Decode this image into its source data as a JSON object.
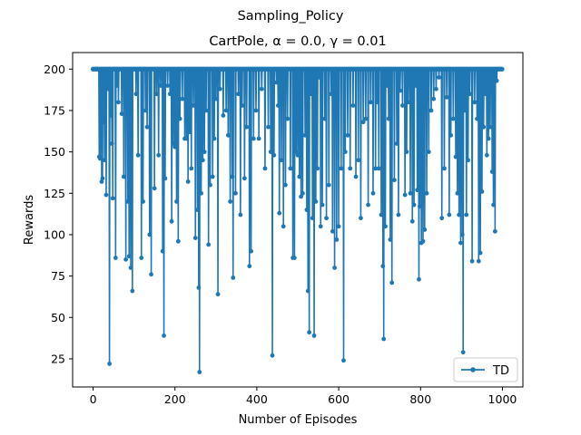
{
  "figure": {
    "suptitle": "Sampling_Policy",
    "title": "CartPole, α = 0.0, γ = 0.01"
  },
  "chart_data": {
    "type": "line",
    "title": "CartPole, α = 0.0, γ = 0.01",
    "xlabel": "Number of Episodes",
    "ylabel": "Rewards",
    "xlim": [
      -50,
      1050
    ],
    "ylim": [
      8,
      210
    ],
    "xticks": [
      0,
      200,
      400,
      600,
      800,
      1000
    ],
    "yticks": [
      25,
      50,
      75,
      100,
      125,
      150,
      175,
      200
    ],
    "xtick_labels": [
      "0",
      "200",
      "400",
      "600",
      "800",
      "1000"
    ],
    "ytick_labels": [
      "25",
      "50",
      "75",
      "100",
      "125",
      "150",
      "175",
      "200"
    ],
    "grid": false,
    "legend": {
      "position": "lower-right",
      "entries": [
        "TD"
      ]
    },
    "colors": {
      "TD": "#1f77b4"
    },
    "series": [
      {
        "name": "TD",
        "x_start": 0,
        "x_end": 999,
        "baseline": 200,
        "dips": [
          [
            15,
            147
          ],
          [
            17,
            146
          ],
          [
            19,
            157
          ],
          [
            21,
            132
          ],
          [
            23,
            134
          ],
          [
            25,
            168
          ],
          [
            28,
            145
          ],
          [
            32,
            124
          ],
          [
            36,
            188
          ],
          [
            40,
            22
          ],
          [
            44,
            172
          ],
          [
            46,
            155
          ],
          [
            48,
            122
          ],
          [
            55,
            86
          ],
          [
            58,
            190
          ],
          [
            62,
            180
          ],
          [
            70,
            173
          ],
          [
            75,
            135
          ],
          [
            80,
            85
          ],
          [
            85,
            120
          ],
          [
            88,
            87
          ],
          [
            92,
            80
          ],
          [
            96,
            66
          ],
          [
            105,
            185
          ],
          [
            110,
            148
          ],
          [
            118,
            86
          ],
          [
            122,
            120
          ],
          [
            128,
            175
          ],
          [
            132,
            165
          ],
          [
            138,
            100
          ],
          [
            142,
            76
          ],
          [
            150,
            128
          ],
          [
            155,
            185
          ],
          [
            160,
            148
          ],
          [
            165,
            190
          ],
          [
            170,
            90
          ],
          [
            173,
            39
          ],
          [
            176,
            134
          ],
          [
            182,
            190
          ],
          [
            188,
            185
          ],
          [
            192,
            108
          ],
          [
            196,
            155
          ],
          [
            200,
            153
          ],
          [
            204,
            120
          ],
          [
            208,
            96
          ],
          [
            212,
            170
          ],
          [
            218,
            182
          ],
          [
            224,
            158
          ],
          [
            228,
            158
          ],
          [
            232,
            132
          ],
          [
            236,
            162
          ],
          [
            240,
            140
          ],
          [
            245,
            178
          ],
          [
            250,
            98
          ],
          [
            255,
            115
          ],
          [
            258,
            68
          ],
          [
            260,
            17
          ],
          [
            264,
            125
          ],
          [
            268,
            145
          ],
          [
            272,
            150
          ],
          [
            276,
            175
          ],
          [
            282,
            94
          ],
          [
            286,
            130
          ],
          [
            292,
            135
          ],
          [
            296,
            158
          ],
          [
            300,
            182
          ],
          [
            305,
            64
          ],
          [
            310,
            188
          ],
          [
            318,
            172
          ],
          [
            325,
            175
          ],
          [
            330,
            160
          ],
          [
            335,
            120
          ],
          [
            340,
            135
          ],
          [
            342,
            74
          ],
          [
            348,
            125
          ],
          [
            355,
            185
          ],
          [
            360,
            112
          ],
          [
            364,
            178
          ],
          [
            370,
            134
          ],
          [
            375,
            165
          ],
          [
            382,
            81
          ],
          [
            386,
            90
          ],
          [
            392,
            158
          ],
          [
            398,
            175
          ],
          [
            405,
            158
          ],
          [
            412,
            188
          ],
          [
            420,
            140
          ],
          [
            428,
            165
          ],
          [
            434,
            150
          ],
          [
            438,
            27
          ],
          [
            442,
            148
          ],
          [
            448,
            192
          ],
          [
            452,
            178
          ],
          [
            455,
            113
          ],
          [
            460,
            145
          ],
          [
            465,
            105
          ],
          [
            470,
            130
          ],
          [
            475,
            170
          ],
          [
            482,
            140
          ],
          [
            488,
            86
          ],
          [
            492,
            86
          ],
          [
            496,
            150
          ],
          [
            500,
            148
          ],
          [
            504,
            135
          ],
          [
            508,
            123
          ],
          [
            512,
            125
          ],
          [
            518,
            160
          ],
          [
            522,
            115
          ],
          [
            525,
            66
          ],
          [
            528,
            41
          ],
          [
            532,
            185
          ],
          [
            536,
            110
          ],
          [
            540,
            39
          ],
          [
            544,
            120
          ],
          [
            548,
            140
          ],
          [
            552,
            195
          ],
          [
            556,
            105
          ],
          [
            560,
            118
          ],
          [
            566,
            170
          ],
          [
            570,
            110
          ],
          [
            576,
            130
          ],
          [
            582,
            185
          ],
          [
            585,
            102
          ],
          [
            590,
            80
          ],
          [
            595,
            97
          ],
          [
            600,
            105
          ],
          [
            606,
            140
          ],
          [
            612,
            24
          ],
          [
            616,
            150
          ],
          [
            622,
            160
          ],
          [
            628,
            140
          ],
          [
            635,
            178
          ],
          [
            642,
            135
          ],
          [
            648,
            145
          ],
          [
            654,
            110
          ],
          [
            660,
            168
          ],
          [
            666,
            170
          ],
          [
            672,
            118
          ],
          [
            678,
            180
          ],
          [
            684,
            125
          ],
          [
            690,
            140
          ],
          [
            694,
            180
          ],
          [
            698,
            140
          ],
          [
            704,
            112
          ],
          [
            708,
            81
          ],
          [
            710,
            37
          ],
          [
            714,
            105
          ],
          [
            718,
            190
          ],
          [
            722,
            170
          ],
          [
            726,
            97
          ],
          [
            730,
            71
          ],
          [
            736,
            133
          ],
          [
            742,
            155
          ],
          [
            746,
            112
          ],
          [
            750,
            187
          ],
          [
            756,
            178
          ],
          [
            762,
            124
          ],
          [
            766,
            150
          ],
          [
            770,
            180
          ],
          [
            775,
            125
          ],
          [
            780,
            108
          ],
          [
            784,
            118
          ],
          [
            788,
            190
          ],
          [
            792,
            127
          ],
          [
            796,
            73
          ],
          [
            798,
            117
          ],
          [
            802,
            95
          ],
          [
            806,
            96
          ],
          [
            810,
            103
          ],
          [
            815,
            125
          ],
          [
            820,
            150
          ],
          [
            826,
            175
          ],
          [
            832,
            182
          ],
          [
            838,
            188
          ],
          [
            845,
            195
          ],
          [
            852,
            110
          ],
          [
            858,
            140
          ],
          [
            864,
            183
          ],
          [
            870,
            112
          ],
          [
            874,
            160
          ],
          [
            880,
            170
          ],
          [
            886,
            147
          ],
          [
            890,
            125
          ],
          [
            894,
            112
          ],
          [
            898,
            95
          ],
          [
            902,
            100
          ],
          [
            904,
            29
          ],
          [
            908,
            175
          ],
          [
            912,
            112
          ],
          [
            916,
            145
          ],
          [
            920,
            185
          ],
          [
            926,
            84
          ],
          [
            932,
            180
          ],
          [
            938,
            170
          ],
          [
            942,
            84
          ],
          [
            946,
            89
          ],
          [
            950,
            126
          ],
          [
            954,
            165
          ],
          [
            958,
            185
          ],
          [
            962,
            148
          ],
          [
            966,
            158
          ],
          [
            970,
            165
          ],
          [
            975,
            138
          ],
          [
            978,
            118
          ],
          [
            982,
            102
          ],
          [
            986,
            193
          ]
        ]
      }
    ]
  }
}
